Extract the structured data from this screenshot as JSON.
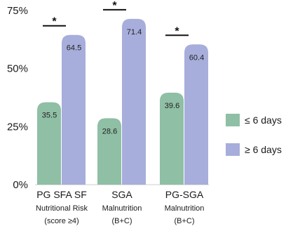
{
  "chart_data": {
    "type": "bar",
    "categories": [
      {
        "lines": [
          "PG SFA SF",
          "Nutritional Risk",
          "(score ≥4)"
        ]
      },
      {
        "lines": [
          "SGA",
          "Malnutrition",
          "(B+C)"
        ]
      },
      {
        "lines": [
          "PG-SGA",
          "Malnutrition",
          "(B+C)"
        ]
      }
    ],
    "series": [
      {
        "name": "≤ 6 days",
        "color": "#8fbfa5",
        "values": [
          35.5,
          28.6,
          39.6
        ],
        "labels": [
          "35.5",
          "28.6",
          "39.6"
        ]
      },
      {
        "name": "≥ 6 days",
        "color": "#a7aedb",
        "values": [
          64.5,
          71.4,
          60.4
        ],
        "labels": [
          "64.5",
          "71.4",
          "60.4"
        ]
      }
    ],
    "yticks": [
      "0%",
      "25%",
      "50%",
      "75%"
    ],
    "ylim": [
      0,
      75
    ],
    "significance": {
      "symbol": "*",
      "categories": [
        0,
        1,
        2
      ]
    },
    "legend_position": "right",
    "grid": false
  }
}
